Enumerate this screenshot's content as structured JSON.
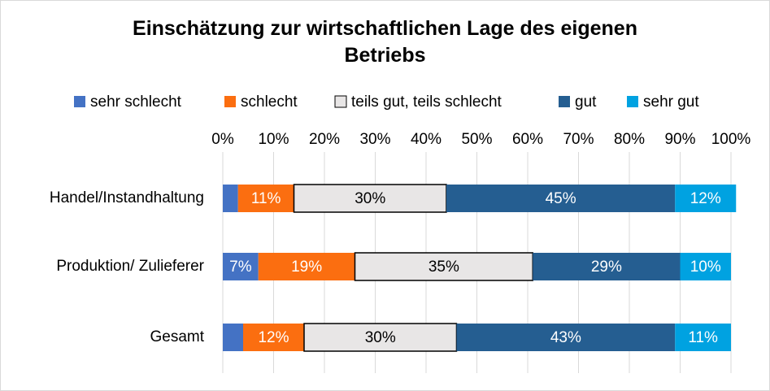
{
  "chart_data": {
    "type": "stacked-bar-horizontal",
    "title": "Einschätzung zur wirtschaftlichen Lage des eigenen Betriebs",
    "categories": [
      "Handel/Instandhaltung",
      "Produktion/ Zulieferer",
      "Gesamt"
    ],
    "series": [
      {
        "name": "sehr schlecht",
        "color": "#4472c4",
        "values": [
          3,
          7,
          4
        ],
        "value_labels": [
          null,
          "7%",
          null
        ]
      },
      {
        "name": "schlecht",
        "color": "#fb6e10",
        "values": [
          11,
          19,
          12
        ],
        "value_labels": [
          "11%",
          "19%",
          "12%"
        ]
      },
      {
        "name": "teils gut, teils schlecht",
        "color": "#e8e6e6",
        "values": [
          30,
          35,
          30
        ],
        "value_labels": [
          "30%",
          "35%",
          "30%"
        ]
      },
      {
        "name": "gut",
        "color": "#255e91",
        "values": [
          45,
          29,
          43
        ],
        "value_labels": [
          "45%",
          "29%",
          "43%"
        ]
      },
      {
        "name": "sehr gut",
        "color": "#00a2e1",
        "values": [
          12,
          10,
          11
        ],
        "value_labels": [
          "12%",
          "10%",
          "11%"
        ]
      }
    ],
    "xlim": [
      0,
      100
    ],
    "xticks": [
      {
        "value": 0,
        "label": "0%"
      },
      {
        "value": 10,
        "label": "10%"
      },
      {
        "value": 20,
        "label": "20%"
      },
      {
        "value": 30,
        "label": "30%"
      },
      {
        "value": 40,
        "label": "40%"
      },
      {
        "value": 50,
        "label": "50%"
      },
      {
        "value": 60,
        "label": "60%"
      },
      {
        "value": 70,
        "label": "70%"
      },
      {
        "value": 80,
        "label": "80%"
      },
      {
        "value": 90,
        "label": "90%"
      },
      {
        "value": 100,
        "label": "100%"
      }
    ],
    "grid": true,
    "legend": "top"
  }
}
